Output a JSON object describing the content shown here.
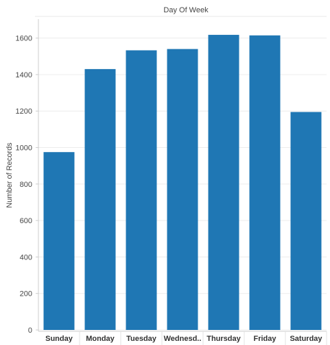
{
  "chart_data": {
    "type": "bar",
    "title": "Day Of Week",
    "xlabel": "",
    "ylabel": "Number of Records",
    "categories": [
      "Sunday",
      "Monday",
      "Tuesday",
      "Wednesd..",
      "Thursday",
      "Friday",
      "Saturday"
    ],
    "values": [
      975,
      1430,
      1533,
      1540,
      1618,
      1615,
      1195
    ],
    "ylim": [
      0,
      1700
    ],
    "yticks": [
      0,
      200,
      400,
      600,
      800,
      1000,
      1200,
      1400,
      1600
    ],
    "grid": true,
    "bar_color": "#1f77b4"
  }
}
